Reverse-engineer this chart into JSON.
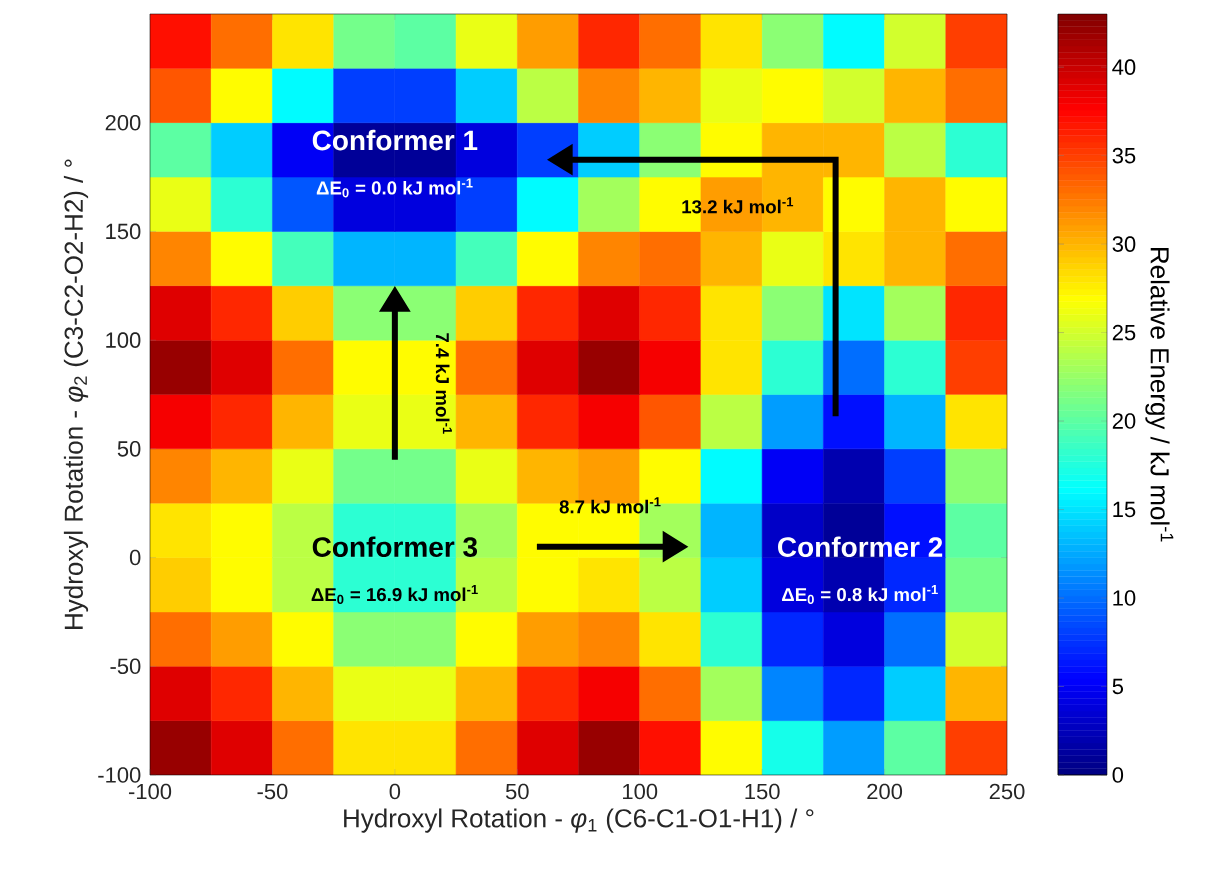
{
  "chart_data": {
    "type": "heatmap",
    "xlabel": "Hydroxyl Rotation - *φ*$_{1}$ (C6-C1-O1-H1) / °",
    "ylabel": "Hydroxyl Rotation - *φ*$_{2}$ (C3-C2-O2-H2) / °",
    "clabel": "Relative Energy / kJ mol$^{-1}$",
    "x": [
      -87.5,
      -62.5,
      -37.5,
      -12.5,
      12.5,
      37.5,
      62.5,
      87.5,
      112.5,
      137.5,
      162.5,
      187.5,
      212.5,
      237.5
    ],
    "y": [
      237.5,
      212.5,
      187.5,
      162.5,
      137.5,
      112.5,
      87.5,
      62.5,
      37.5,
      12.5,
      -12.5,
      -37.5,
      -62.5,
      -87.5
    ],
    "cells": [
      [
        37,
        33,
        28,
        21,
        20,
        26,
        31,
        36,
        33,
        28,
        22,
        16,
        25,
        35
      ],
      [
        34,
        27,
        16,
        8,
        8,
        14,
        24,
        32,
        30,
        26,
        27,
        25,
        30,
        33
      ],
      [
        20,
        14,
        5,
        1,
        1,
        4,
        8,
        14,
        22,
        27,
        30,
        30,
        24,
        18
      ],
      [
        26,
        18,
        9,
        4,
        4,
        8,
        16,
        23,
        27,
        31,
        30,
        27,
        30,
        27
      ],
      [
        32,
        27,
        19,
        13,
        13,
        19,
        27,
        32,
        33,
        30,
        26,
        28,
        30,
        33
      ],
      [
        39,
        36,
        29,
        22,
        22,
        29,
        36,
        39,
        36,
        28,
        22,
        15,
        23,
        36
      ],
      [
        42,
        39,
        33,
        27,
        27,
        33,
        39,
        42,
        38,
        28,
        18,
        10,
        18,
        35
      ],
      [
        38,
        36,
        30,
        26,
        26,
        30,
        36,
        38,
        34,
        24,
        12,
        6,
        13,
        28
      ],
      [
        32,
        30,
        26,
        21,
        21,
        26,
        30,
        31,
        27,
        16,
        5,
        2,
        8,
        22
      ],
      [
        28,
        27,
        24,
        18,
        18,
        23,
        27,
        27,
        23,
        13,
        3,
        1,
        6,
        20
      ],
      [
        29,
        27,
        24,
        18,
        18,
        24,
        27,
        28,
        24,
        14,
        4,
        2,
        7,
        21
      ],
      [
        33,
        31,
        27,
        22,
        22,
        27,
        31,
        32,
        28,
        18,
        7,
        4,
        10,
        25
      ],
      [
        39,
        36,
        30,
        26,
        26,
        30,
        36,
        38,
        33,
        23,
        11,
        7,
        14,
        30
      ],
      [
        42,
        39,
        33,
        28,
        28,
        33,
        39,
        42,
        37,
        27,
        17,
        12,
        20,
        35
      ]
    ],
    "xlim": [
      -100,
      250
    ],
    "ylim": [
      -100,
      250
    ],
    "xticks": [
      -100,
      -50,
      0,
      50,
      100,
      150,
      200,
      250
    ],
    "yticks": [
      -100,
      -50,
      0,
      50,
      100,
      150,
      200
    ],
    "clim": [
      0,
      43
    ],
    "cticks": [
      0,
      5,
      10,
      15,
      20,
      25,
      30,
      35,
      40
    ],
    "annotations": [
      "Conformer 1",
      "Conformer 2",
      "Conformer 3",
      "ΔE$_{0}$ = 0.0 kJ mol$^{-1}$",
      "ΔE$_{0}$ = 0.8 kJ mol$^{-1}$",
      "ΔE$_{0}$ = 16.9 kJ mol$^{-1}$",
      "7.4 kJ mol$^{-1}$",
      "8.7 kJ mol$^{-1}$",
      "13.2 kJ mol$^{-1}$"
    ]
  }
}
